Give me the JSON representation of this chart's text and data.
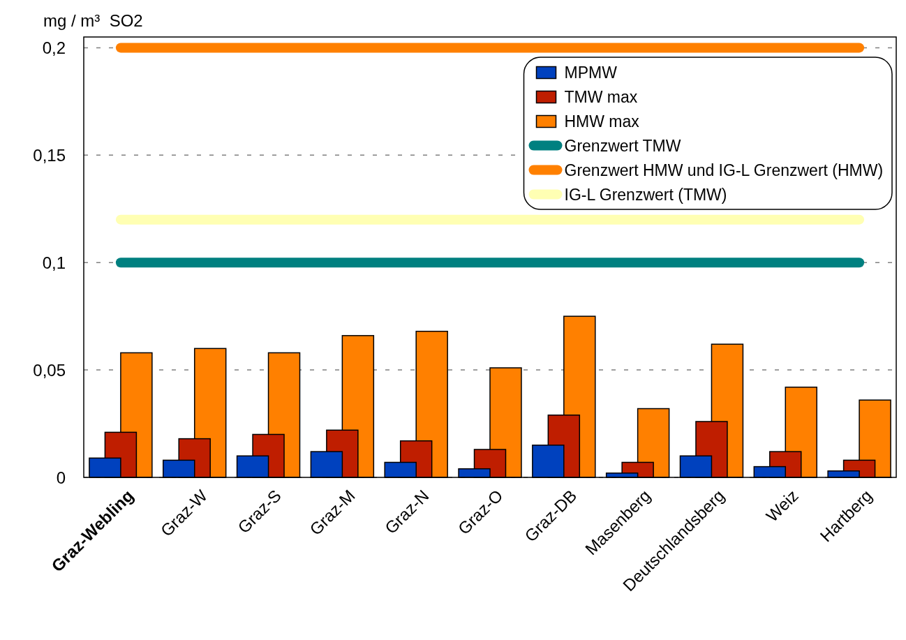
{
  "chart_data": {
    "type": "bar",
    "ylabel": "mg / m³  SO2",
    "categories": [
      "Graz-Webling",
      "Graz-W",
      "Graz-S",
      "Graz-M",
      "Graz-N",
      "Graz-O",
      "Graz-DB",
      "Masenberg",
      "Deutschlandsberg",
      "Weiz",
      "Hartberg"
    ],
    "series": [
      {
        "name": "MPMW",
        "color": "#0041be",
        "values": [
          0.009,
          0.008,
          0.01,
          0.012,
          0.007,
          0.004,
          0.015,
          0.002,
          0.01,
          0.005,
          0.003
        ]
      },
      {
        "name": "TMW max",
        "color": "#bf1e00",
        "values": [
          0.021,
          0.018,
          0.02,
          0.022,
          0.017,
          0.013,
          0.029,
          0.007,
          0.026,
          0.012,
          0.008
        ]
      },
      {
        "name": "HMW max",
        "color": "#ff8000",
        "values": [
          0.058,
          0.06,
          0.058,
          0.066,
          0.068,
          0.051,
          0.075,
          0.032,
          0.062,
          0.042,
          0.036
        ]
      },
      {
        "name": "Grenzwert TMW",
        "type": "line",
        "color": "#008080",
        "values": [
          0.1,
          0.1,
          0.1,
          0.1,
          0.1,
          0.1,
          0.1,
          0.1,
          0.1,
          0.1,
          0.1
        ]
      },
      {
        "name": "Grenzwert HMW und IG-L Grenzwert (HMW)",
        "type": "line",
        "color": "#ff8000",
        "values": [
          0.2,
          0.2,
          0.2,
          0.2,
          0.2,
          0.2,
          0.2,
          0.2,
          0.2,
          0.2,
          0.2
        ]
      },
      {
        "name": "IG-L Grenzwert (TMW)",
        "type": "line",
        "color": "#ffffb3",
        "values": [
          0.12,
          0.12,
          0.12,
          0.12,
          0.12,
          0.12,
          0.12,
          0.12,
          0.12,
          0.12,
          0.12
        ]
      }
    ],
    "ylim": [
      0,
      0.205
    ],
    "yticks": [
      {
        "value": 0,
        "label": "0"
      },
      {
        "value": 0.05,
        "label": "0,05"
      },
      {
        "value": 0.1,
        "label": "0,1"
      },
      {
        "value": 0.15,
        "label": "0,15"
      },
      {
        "value": 0.2,
        "label": "0,2"
      }
    ],
    "grid": "y",
    "legend": "top right"
  }
}
